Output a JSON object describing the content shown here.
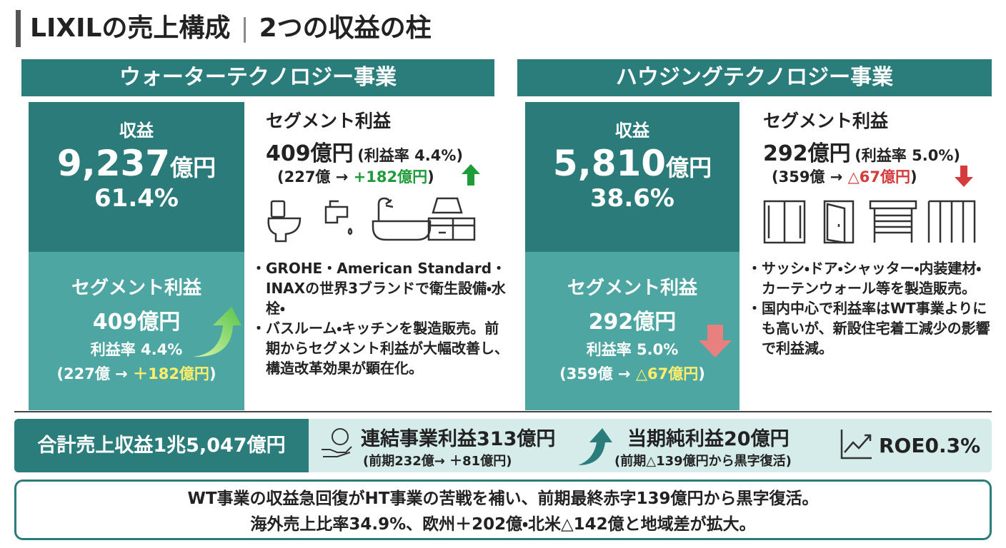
{
  "header": {
    "title_main": "LIXILの売上構成",
    "title_sub": "2つの収益の柱"
  },
  "segments": [
    {
      "name": "ウォーターテクノロジー事業",
      "revenue_label": "収益",
      "revenue": "9,237",
      "revenue_unit": "億円",
      "share": "61.4%",
      "box_profit_label": "セグメント利益",
      "box_profit_value": "409億円",
      "box_profit_margin": "利益率 4.4%",
      "box_change_prev": "(227億 → ",
      "box_change": "＋182億円",
      "box_change_close": ")",
      "profit_heading": "セグメント利益",
      "profit_value": "409億円",
      "profit_margin": "(利益率 4.4%)",
      "profit_prev": "(227億 → ",
      "profit_change": "+182億円",
      "profit_close": ")",
      "bullets": [
        "GROHE・American Standard・INAXの世界3ブランドで衛生設備・水栓・",
        "バスルーム・キッチンを製造販売。前期からセグメント利益が大幅改善し、構造改革効果が顕在化。"
      ]
    },
    {
      "name": "ハウジングテクノロジー事業",
      "revenue_label": "収益",
      "revenue": "5,810",
      "revenue_unit": "億円",
      "share": "38.6%",
      "box_profit_label": "セグメント利益",
      "box_profit_value": "292億円",
      "box_profit_margin": "利益率 5.0%",
      "box_change_prev": "(359億 → ",
      "box_change": "△67億円",
      "box_change_close": ")",
      "profit_heading": "セグメント利益",
      "profit_value": "292億円",
      "profit_margin": "(利益率 5.0%)",
      "profit_prev": "(359億 → ",
      "profit_change": "△67億円",
      "profit_close": ")",
      "bullets": [
        "サッシ・ドア・シャッター・内装建材・カーテンウォール等を製造販売。",
        "国内中心で利益率はWT事業よりにも高いが、新設住宅着工減少の影響で利益減。"
      ]
    }
  ],
  "summary": {
    "total": "合計売上収益1兆5,047億円",
    "items": [
      {
        "label": "連結事業利益313億円",
        "note": "(前期232億→ ＋81億円)"
      },
      {
        "label": "当期純利益20億円",
        "note": "(前期△139億円から黒字復活)"
      },
      {
        "label": "ROE0.3%"
      }
    ]
  },
  "footer": {
    "lines": [
      "WT事業の収益急回復がHT事業の苦戦を補い、前期最終赤字139億円から黒字復活。",
      "海外売上比率34.9%、欧州＋202億・北米△142億と地域差が拡大。"
    ]
  }
}
